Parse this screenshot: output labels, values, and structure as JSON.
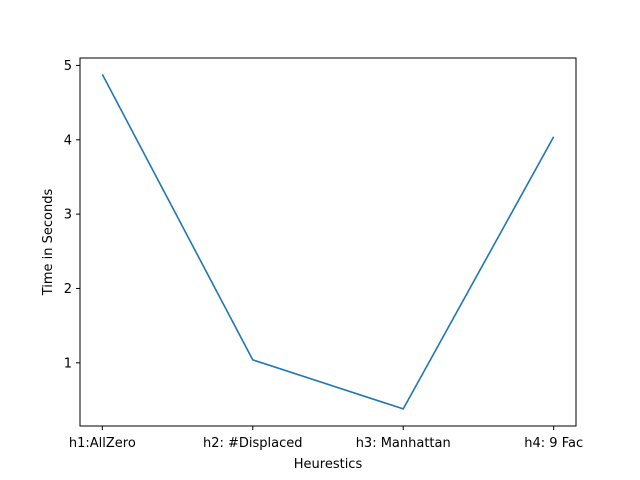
{
  "chart_data": {
    "type": "line",
    "title": "",
    "xlabel": "Heurestics",
    "ylabel": "Time in Seconds",
    "categories": [
      "h1:AllZero",
      "h2: #Displaced",
      "h3: Manhattan",
      "h4: 9 Fac"
    ],
    "series": [
      {
        "values": [
          4.88,
          1.04,
          0.38,
          4.04
        ],
        "color": "#1f77b4"
      }
    ],
    "ylim": [
      0.15,
      5.1
    ],
    "yticks": [
      1,
      2,
      3,
      4,
      5
    ],
    "grid": false,
    "legend": "none"
  }
}
